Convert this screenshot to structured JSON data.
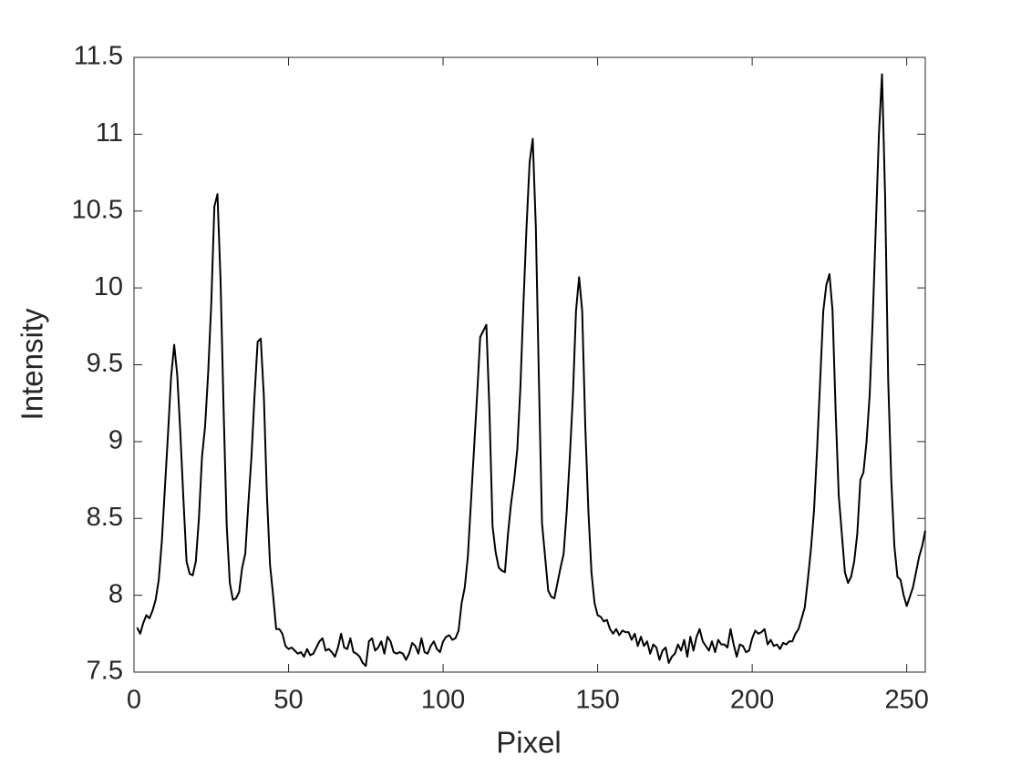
{
  "chart_data": {
    "type": "line",
    "xlabel": "Pixel",
    "ylabel": "Intensity",
    "xlim": [
      0,
      256
    ],
    "xticks": [
      0,
      50,
      100,
      150,
      200,
      250
    ],
    "ylim": [
      7.5,
      11.5
    ],
    "yticks": [
      7.5,
      8,
      8.5,
      9,
      9.5,
      10,
      10.5,
      11,
      11.5
    ],
    "grid": false,
    "box": true,
    "series": [
      {
        "name": "Intensity",
        "color": "#000000",
        "x": [
          1,
          2,
          3,
          4,
          5,
          6,
          7,
          8,
          9,
          10,
          11,
          12,
          13,
          14,
          15,
          16,
          17,
          18,
          19,
          20,
          21,
          22,
          23,
          24,
          25,
          26,
          27,
          28,
          29,
          30,
          31,
          32,
          33,
          34,
          35,
          36,
          37,
          38,
          39,
          40,
          41,
          42,
          43,
          44,
          45,
          46,
          47,
          48,
          49,
          50,
          51,
          52,
          53,
          54,
          55,
          56,
          57,
          58,
          59,
          60,
          61,
          62,
          63,
          64,
          65,
          66,
          67,
          68,
          69,
          70,
          71,
          72,
          73,
          74,
          75,
          76,
          77,
          78,
          79,
          80,
          81,
          82,
          83,
          84,
          85,
          86,
          87,
          88,
          89,
          90,
          91,
          92,
          93,
          94,
          95,
          96,
          97,
          98,
          99,
          100,
          101,
          102,
          103,
          104,
          105,
          106,
          107,
          108,
          109,
          110,
          111,
          112,
          113,
          114,
          115,
          116,
          117,
          118,
          119,
          120,
          121,
          122,
          123,
          124,
          125,
          126,
          127,
          128,
          129,
          130,
          131,
          132,
          133,
          134,
          135,
          136,
          137,
          138,
          139,
          140,
          141,
          142,
          143,
          144,
          145,
          146,
          147,
          148,
          149,
          150,
          151,
          152,
          153,
          154,
          155,
          156,
          157,
          158,
          159,
          160,
          161,
          162,
          163,
          164,
          165,
          166,
          167,
          168,
          169,
          170,
          171,
          172,
          173,
          174,
          175,
          176,
          177,
          178,
          179,
          180,
          181,
          182,
          183,
          184,
          185,
          186,
          187,
          188,
          189,
          190,
          191,
          192,
          193,
          194,
          195,
          196,
          197,
          198,
          199,
          200,
          201,
          202,
          203,
          204,
          205,
          206,
          207,
          208,
          209,
          210,
          211,
          212,
          213,
          214,
          215,
          216,
          217,
          218,
          219,
          220,
          221,
          222,
          223,
          224,
          225,
          226,
          227,
          228,
          229,
          230,
          231,
          232,
          233,
          234,
          235,
          236,
          237,
          238,
          239,
          240,
          241,
          242,
          243,
          244,
          245,
          246,
          247,
          248,
          249,
          250,
          251,
          252,
          253,
          254,
          255,
          256
        ],
        "values": [
          7.79,
          7.75,
          7.82,
          7.87,
          7.85,
          7.9,
          7.97,
          8.1,
          8.35,
          8.7,
          9.05,
          9.42,
          9.63,
          9.43,
          9.05,
          8.62,
          8.22,
          8.14,
          8.13,
          8.22,
          8.5,
          8.9,
          9.1,
          9.45,
          9.9,
          10.53,
          10.61,
          10.05,
          9.2,
          8.45,
          8.08,
          7.97,
          7.98,
          8.02,
          8.18,
          8.27,
          8.6,
          8.9,
          9.3,
          9.65,
          9.67,
          9.3,
          8.65,
          8.2,
          8.0,
          7.78,
          7.78,
          7.75,
          7.67,
          7.65,
          7.66,
          7.64,
          7.62,
          7.63,
          7.6,
          7.65,
          7.61,
          7.62,
          7.66,
          7.7,
          7.72,
          7.64,
          7.65,
          7.63,
          7.6,
          7.66,
          7.75,
          7.66,
          7.65,
          7.72,
          7.63,
          7.62,
          7.6,
          7.56,
          7.54,
          7.7,
          7.72,
          7.64,
          7.66,
          7.7,
          7.62,
          7.73,
          7.7,
          7.63,
          7.62,
          7.63,
          7.62,
          7.58,
          7.62,
          7.69,
          7.67,
          7.62,
          7.72,
          7.63,
          7.62,
          7.67,
          7.7,
          7.65,
          7.63,
          7.7,
          7.73,
          7.74,
          7.71,
          7.72,
          7.77,
          7.95,
          8.05,
          8.25,
          8.6,
          8.95,
          9.3,
          9.68,
          9.72,
          9.76,
          9.2,
          8.45,
          8.28,
          8.18,
          8.16,
          8.15,
          8.4,
          8.6,
          8.75,
          8.95,
          9.35,
          9.9,
          10.4,
          10.82,
          10.97,
          10.4,
          9.4,
          8.47,
          8.25,
          8.03,
          7.99,
          7.98,
          8.08,
          8.18,
          8.27,
          8.55,
          8.9,
          9.3,
          9.85,
          10.07,
          9.85,
          9.1,
          8.55,
          8.15,
          7.95,
          7.87,
          7.86,
          7.83,
          7.84,
          7.78,
          7.75,
          7.78,
          7.74,
          7.77,
          7.76,
          7.76,
          7.71,
          7.75,
          7.67,
          7.73,
          7.67,
          7.7,
          7.62,
          7.68,
          7.66,
          7.58,
          7.64,
          7.66,
          7.56,
          7.6,
          7.62,
          7.68,
          7.64,
          7.71,
          7.6,
          7.73,
          7.64,
          7.73,
          7.78,
          7.7,
          7.67,
          7.64,
          7.7,
          7.63,
          7.71,
          7.68,
          7.68,
          7.66,
          7.78,
          7.68,
          7.6,
          7.68,
          7.67,
          7.63,
          7.64,
          7.72,
          7.77,
          7.75,
          7.76,
          7.78,
          7.68,
          7.71,
          7.67,
          7.68,
          7.65,
          7.69,
          7.68,
          7.7,
          7.7,
          7.75,
          7.78,
          7.85,
          7.92,
          8.1,
          8.3,
          8.55,
          8.95,
          9.4,
          9.85,
          10.02,
          10.09,
          9.85,
          9.2,
          8.65,
          8.4,
          8.15,
          8.08,
          8.12,
          8.22,
          8.4,
          8.75,
          8.8,
          9.0,
          9.3,
          9.8,
          10.4,
          11.0,
          11.39,
          10.6,
          9.4,
          8.75,
          8.32,
          8.12,
          8.1,
          8.0,
          7.93,
          7.99,
          8.05,
          8.15,
          8.25,
          8.32,
          8.42
        ]
      }
    ]
  }
}
